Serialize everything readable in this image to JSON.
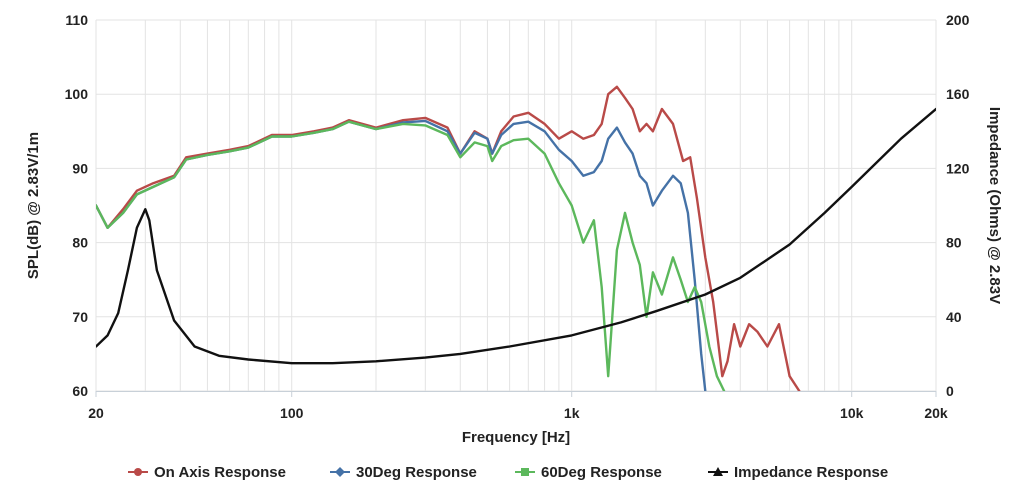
{
  "chart_data": {
    "type": "line",
    "title": "",
    "xlabel": "Frequency [Hz]",
    "ylabel_left": "SPL(dB) @ 2.83V/1m",
    "ylabel_right": "Impedance (Ohms) @ 2.83V",
    "x_scale": "log",
    "xlim": [
      20,
      20000
    ],
    "ylim_left": [
      60,
      110
    ],
    "ylim_right": [
      0,
      200
    ],
    "x_ticks": [
      {
        "value": 20,
        "label": "20"
      },
      {
        "value": 100,
        "label": "100"
      },
      {
        "value": 1000,
        "label": "1k"
      },
      {
        "value": 10000,
        "label": "10k"
      },
      {
        "value": 20000,
        "label": "20k"
      }
    ],
    "y_ticks_left": [
      "60",
      "70",
      "80",
      "90",
      "100",
      "110"
    ],
    "y_ticks_right": [
      "0",
      "40",
      "80",
      "120",
      "160",
      "200"
    ],
    "grid": true,
    "legend_position": "bottom",
    "series": [
      {
        "name": "On Axis Response",
        "color": "#b94a48",
        "axis": "left",
        "points": [
          [
            20,
            85
          ],
          [
            22,
            82
          ],
          [
            25,
            84.5
          ],
          [
            28,
            87
          ],
          [
            32,
            88
          ],
          [
            38,
            89
          ],
          [
            42,
            91.5
          ],
          [
            50,
            92
          ],
          [
            60,
            92.5
          ],
          [
            70,
            93
          ],
          [
            85,
            94.5
          ],
          [
            100,
            94.5
          ],
          [
            120,
            95
          ],
          [
            140,
            95.5
          ],
          [
            160,
            96.5
          ],
          [
            200,
            95.5
          ],
          [
            250,
            96.5
          ],
          [
            300,
            96.8
          ],
          [
            360,
            95.5
          ],
          [
            400,
            92
          ],
          [
            450,
            95
          ],
          [
            500,
            94
          ],
          [
            520,
            92
          ],
          [
            560,
            95
          ],
          [
            620,
            97
          ],
          [
            700,
            97.5
          ],
          [
            800,
            96
          ],
          [
            900,
            94
          ],
          [
            1000,
            95
          ],
          [
            1100,
            94
          ],
          [
            1200,
            94.5
          ],
          [
            1280,
            96
          ],
          [
            1350,
            100
          ],
          [
            1450,
            101
          ],
          [
            1550,
            99.5
          ],
          [
            1650,
            98
          ],
          [
            1750,
            95
          ],
          [
            1850,
            96
          ],
          [
            1950,
            95
          ],
          [
            2100,
            98
          ],
          [
            2300,
            96
          ],
          [
            2500,
            91
          ],
          [
            2650,
            91.5
          ],
          [
            2800,
            86
          ],
          [
            3000,
            78
          ],
          [
            3200,
            72
          ],
          [
            3350,
            66
          ],
          [
            3450,
            62
          ],
          [
            3600,
            64
          ],
          [
            3800,
            69
          ],
          [
            4000,
            66
          ],
          [
            4300,
            69
          ],
          [
            4600,
            68
          ],
          [
            5000,
            66
          ],
          [
            5500,
            69
          ],
          [
            6000,
            62
          ],
          [
            6500,
            60
          ]
        ]
      },
      {
        "name": "30Deg Response",
        "color": "#4572a7",
        "axis": "left",
        "points": [
          [
            20,
            85
          ],
          [
            22,
            82
          ],
          [
            25,
            84
          ],
          [
            28,
            86.5
          ],
          [
            32,
            87.5
          ],
          [
            38,
            88.8
          ],
          [
            42,
            91.2
          ],
          [
            50,
            91.8
          ],
          [
            60,
            92.3
          ],
          [
            70,
            92.8
          ],
          [
            85,
            94.3
          ],
          [
            100,
            94.3
          ],
          [
            120,
            94.8
          ],
          [
            140,
            95.3
          ],
          [
            160,
            96.3
          ],
          [
            200,
            95.3
          ],
          [
            250,
            96.2
          ],
          [
            300,
            96.4
          ],
          [
            360,
            95
          ],
          [
            400,
            92
          ],
          [
            450,
            94.8
          ],
          [
            500,
            94
          ],
          [
            520,
            92
          ],
          [
            560,
            94.5
          ],
          [
            620,
            96
          ],
          [
            700,
            96.3
          ],
          [
            800,
            95
          ],
          [
            900,
            92.5
          ],
          [
            1000,
            91
          ],
          [
            1100,
            89
          ],
          [
            1200,
            89.5
          ],
          [
            1280,
            91
          ],
          [
            1350,
            94
          ],
          [
            1450,
            95.5
          ],
          [
            1550,
            93.5
          ],
          [
            1650,
            92
          ],
          [
            1750,
            89
          ],
          [
            1850,
            88
          ],
          [
            1950,
            85
          ],
          [
            2100,
            87
          ],
          [
            2300,
            89
          ],
          [
            2450,
            88
          ],
          [
            2600,
            84
          ],
          [
            2750,
            75
          ],
          [
            2900,
            65
          ],
          [
            3000,
            60
          ]
        ]
      },
      {
        "name": "60Deg Response",
        "color": "#5cb85c",
        "axis": "left",
        "points": [
          [
            20,
            85
          ],
          [
            22,
            82
          ],
          [
            25,
            84
          ],
          [
            28,
            86.5
          ],
          [
            32,
            87.5
          ],
          [
            38,
            88.8
          ],
          [
            42,
            91.2
          ],
          [
            50,
            91.8
          ],
          [
            60,
            92.3
          ],
          [
            70,
            92.8
          ],
          [
            85,
            94.3
          ],
          [
            100,
            94.3
          ],
          [
            120,
            94.8
          ],
          [
            140,
            95.3
          ],
          [
            160,
            96.3
          ],
          [
            200,
            95.3
          ],
          [
            250,
            96
          ],
          [
            300,
            95.8
          ],
          [
            360,
            94.5
          ],
          [
            400,
            91.5
          ],
          [
            450,
            93.5
          ],
          [
            500,
            93
          ],
          [
            520,
            91
          ],
          [
            560,
            93
          ],
          [
            620,
            93.8
          ],
          [
            700,
            94
          ],
          [
            800,
            92
          ],
          [
            900,
            88
          ],
          [
            1000,
            85
          ],
          [
            1100,
            80
          ],
          [
            1200,
            83
          ],
          [
            1280,
            74
          ],
          [
            1350,
            62
          ],
          [
            1450,
            79
          ],
          [
            1550,
            84
          ],
          [
            1650,
            80
          ],
          [
            1750,
            77
          ],
          [
            1850,
            70
          ],
          [
            1950,
            76
          ],
          [
            2100,
            73
          ],
          [
            2300,
            78
          ],
          [
            2450,
            75
          ],
          [
            2600,
            72
          ],
          [
            2750,
            74
          ],
          [
            2900,
            72
          ],
          [
            3100,
            66
          ],
          [
            3300,
            62
          ],
          [
            3500,
            60
          ]
        ]
      },
      {
        "name": "Impedance Response",
        "color": "#111111",
        "axis": "right",
        "points": [
          [
            20,
            24
          ],
          [
            22,
            30
          ],
          [
            24,
            42
          ],
          [
            26,
            65
          ],
          [
            28,
            88
          ],
          [
            30,
            98
          ],
          [
            31,
            92
          ],
          [
            33,
            65
          ],
          [
            38,
            38
          ],
          [
            45,
            24
          ],
          [
            55,
            19
          ],
          [
            70,
            17
          ],
          [
            100,
            15
          ],
          [
            140,
            15
          ],
          [
            200,
            16
          ],
          [
            300,
            18
          ],
          [
            400,
            20
          ],
          [
            600,
            24
          ],
          [
            1000,
            30
          ],
          [
            1500,
            37
          ],
          [
            2000,
            43
          ],
          [
            3000,
            52
          ],
          [
            4000,
            61
          ],
          [
            6000,
            79
          ],
          [
            8000,
            96
          ],
          [
            10000,
            110
          ],
          [
            15000,
            136
          ],
          [
            20000,
            152
          ]
        ]
      }
    ]
  }
}
